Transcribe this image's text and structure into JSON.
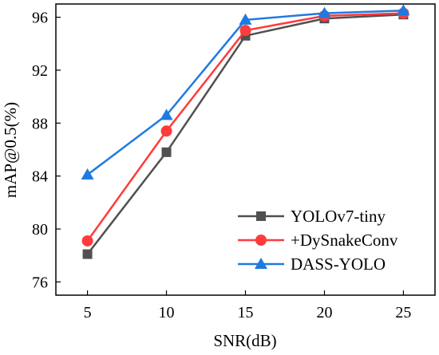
{
  "chart_data": {
    "type": "line",
    "xlabel": "SNR(dB)",
    "ylabel": "mAP@0.5(%)",
    "x": [
      5,
      10,
      15,
      20,
      25
    ],
    "xlim": [
      3,
      27
    ],
    "ylim": [
      75,
      97
    ],
    "xticks": [
      "5",
      "10",
      "15",
      "20",
      "25"
    ],
    "yticks": [
      "76",
      "80",
      "84",
      "88",
      "92",
      "96"
    ],
    "legend_position": "bottom-right",
    "grid": false,
    "series": [
      {
        "name": "YOLOv7-tiny",
        "color": "#505050",
        "marker": "square",
        "values": [
          78.1,
          85.8,
          94.6,
          95.9,
          96.2
        ]
      },
      {
        "name": "+DySnakeConv",
        "color": "#ff3b3b",
        "marker": "circle",
        "values": [
          79.1,
          87.4,
          95.0,
          96.1,
          96.3
        ]
      },
      {
        "name": "DASS-YOLO",
        "color": "#1f7ae0",
        "marker": "triangle",
        "values": [
          84.1,
          88.6,
          95.8,
          96.3,
          96.5
        ]
      }
    ]
  }
}
